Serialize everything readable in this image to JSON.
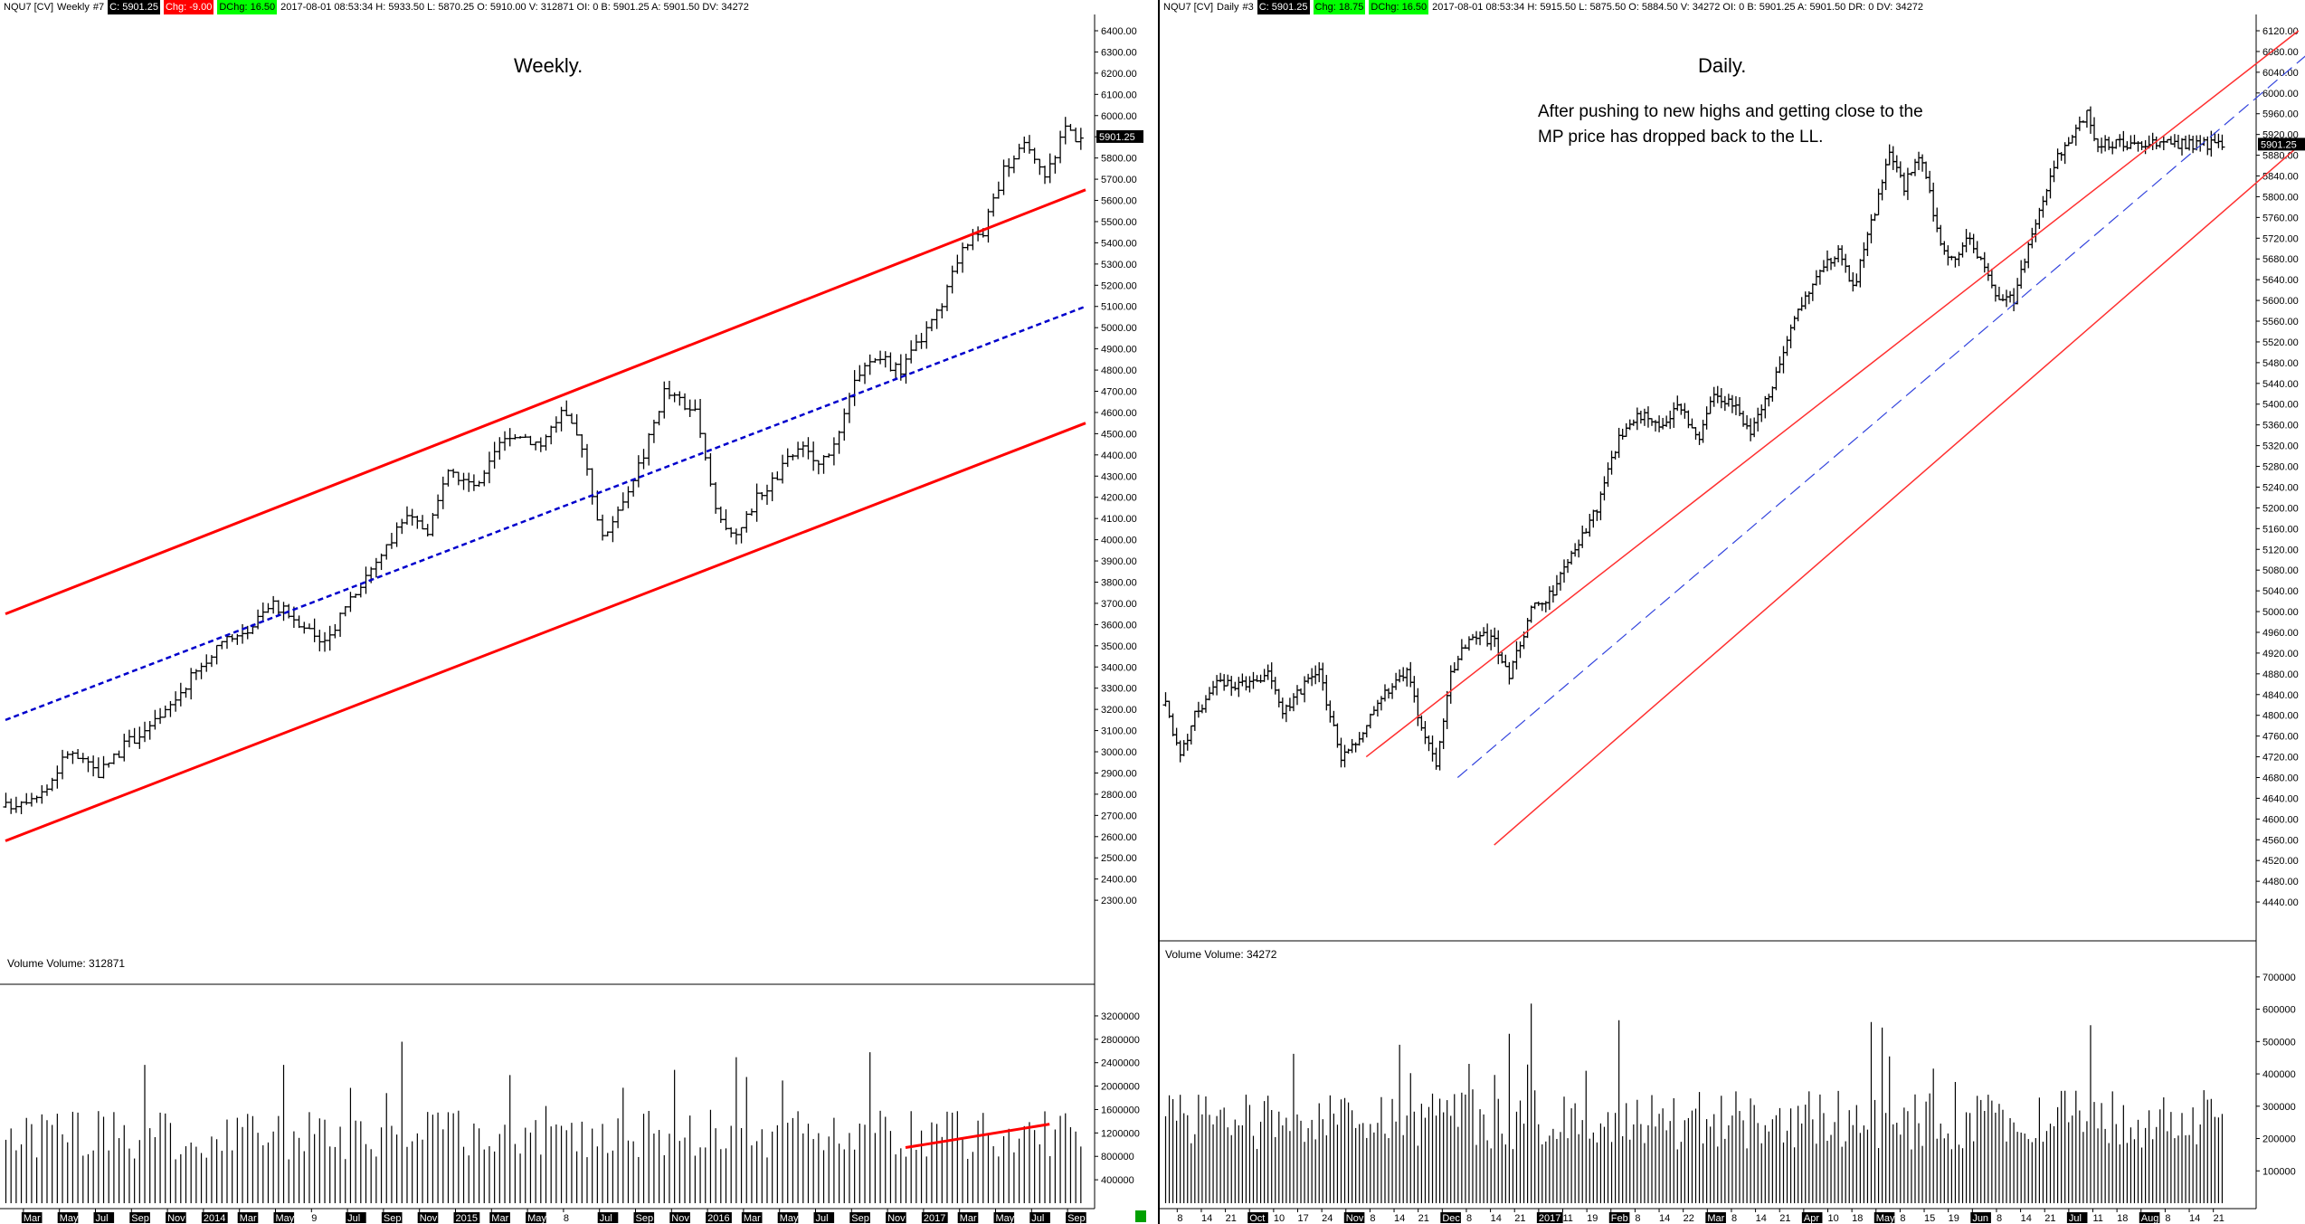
{
  "weekly": {
    "symbol": "NQU7 [CV]",
    "period": "Weekly",
    "tab": "#7",
    "close_badge": "C: 5901.25",
    "chg_badge": "Chg: -9.00",
    "dchg_badge": "DChg: 16.50",
    "info": "2017-08-01 08:53:34 H: 5933.50 L: 5870.25 O: 5910.00 V: 312871 OI: 0 B: 5901.25 A: 5901.50 DV: 34272",
    "title": "Weekly.",
    "last_price_label": "5901.25",
    "volume_label": "Volume  Volume: 312871",
    "x_ticks": [
      "Mar",
      "May",
      "Jul",
      "Sep",
      "Nov",
      "2014",
      "Mar",
      "May",
      "9",
      "Jul",
      "Sep",
      "Nov",
      "2015",
      "Mar",
      "May",
      "8",
      "Jul",
      "Sep",
      "Nov",
      "2016",
      "Mar",
      "May",
      "Jul",
      "Sep",
      "Nov",
      "2017",
      "Mar",
      "May",
      "Jul",
      "Sep"
    ]
  },
  "daily": {
    "symbol": "NQU7 [CV]",
    "period": "Daily",
    "tab": "#3",
    "close_badge": "C: 5901.25",
    "chg_badge": "Chg: 18.75",
    "dchg_badge": "DChg: 16.50",
    "info": "2017-08-01 08:53:34 H: 5915.50 L: 5875.50 O: 5884.50 V: 34272 OI: 0 B: 5901.25 A: 5901.50 DR: 0 DV: 34272",
    "title": "Daily.",
    "note": "After pushing to new highs and getting close to the MP price has dropped back to the LL.",
    "last_price_label": "5901.25",
    "volume_label": "Volume  Volume: 34272",
    "x_ticks": [
      "8",
      "14",
      "21",
      "Oct",
      "10",
      "17",
      "24",
      "Nov",
      "8",
      "14",
      "21",
      "Dec",
      "8",
      "14",
      "21",
      "2017",
      "11",
      "19",
      "Feb",
      "8",
      "14",
      "22",
      "Mar",
      "8",
      "14",
      "21",
      "Apr",
      "10",
      "18",
      "May",
      "8",
      "15",
      "19",
      "Jun",
      "8",
      "14",
      "21",
      "Jul",
      "11",
      "18",
      "Aug",
      "8",
      "14",
      "21"
    ]
  },
  "chart_data": [
    {
      "type": "ohlc",
      "name": "Weekly",
      "y_axis": {
        "min": 2100,
        "max": 6400,
        "step": 100
      },
      "y_ticks": [
        "6400.00",
        "6300.00",
        "6200.00",
        "6100.00",
        "6000.00",
        "5900.00",
        "5800.00",
        "5700.00",
        "5600.00",
        "5500.00",
        "5400.00",
        "5300.00",
        "5200.00",
        "5100.00",
        "5000.00",
        "4900.00",
        "4800.00",
        "4700.00",
        "4600.00",
        "4500.00",
        "4400.00",
        "4300.00",
        "4200.00",
        "4100.00",
        "4000.00",
        "3900.00",
        "3800.00",
        "3700.00",
        "3600.00",
        "3500.00",
        "3400.00",
        "3300.00",
        "3200.00",
        "3100.00",
        "3000.00",
        "2900.00",
        "2800.00",
        "2700.00",
        "2600.00",
        "2500.00",
        "2400.00",
        "2300.00"
      ],
      "anchors": [
        [
          0,
          2740
        ],
        [
          8,
          2830
        ],
        [
          12,
          3000
        ],
        [
          18,
          2900
        ],
        [
          24,
          3050
        ],
        [
          30,
          3150
        ],
        [
          36,
          3350
        ],
        [
          42,
          3500
        ],
        [
          48,
          3600
        ],
        [
          52,
          3700
        ],
        [
          58,
          3600
        ],
        [
          62,
          3500
        ],
        [
          66,
          3700
        ],
        [
          72,
          3900
        ],
        [
          78,
          4100
        ],
        [
          82,
          4050
        ],
        [
          86,
          4300
        ],
        [
          92,
          4250
        ],
        [
          96,
          4450
        ],
        [
          100,
          4500
        ],
        [
          104,
          4450
        ],
        [
          108,
          4600
        ],
        [
          112,
          4450
        ],
        [
          116,
          4000
        ],
        [
          120,
          4200
        ],
        [
          124,
          4400
        ],
        [
          128,
          4700
        ],
        [
          134,
          4600
        ],
        [
          138,
          4150
        ],
        [
          142,
          4000
        ],
        [
          146,
          4200
        ],
        [
          150,
          4300
        ],
        [
          154,
          4450
        ],
        [
          158,
          4350
        ],
        [
          162,
          4500
        ],
        [
          166,
          4800
        ],
        [
          170,
          4850
        ],
        [
          174,
          4800
        ],
        [
          178,
          4950
        ],
        [
          182,
          5100
        ],
        [
          186,
          5400
        ],
        [
          190,
          5450
        ],
        [
          194,
          5750
        ],
        [
          198,
          5850
        ],
        [
          202,
          5700
        ],
        [
          206,
          5950
        ],
        [
          208,
          5901
        ]
      ],
      "regression_channel": {
        "upper": [
          [
            0,
            3650
          ],
          [
            210,
            5650
          ]
        ],
        "mid": [
          [
            0,
            3150
          ],
          [
            210,
            5100
          ]
        ],
        "lower": [
          [
            0,
            2580
          ],
          [
            210,
            4550
          ]
        ]
      },
      "volume_axis": {
        "min": 0,
        "max": 3400000,
        "ticks": [
          "3200000",
          "2800000",
          "2400000",
          "2000000",
          "1600000",
          "1200000",
          "800000",
          "400000"
        ]
      },
      "volume_trend": [
        [
          175,
          950000
        ],
        [
          203,
          1350000
        ]
      ]
    },
    {
      "type": "ohlc",
      "name": "Daily",
      "y_axis": {
        "min": 4400,
        "max": 6120,
        "step": 40
      },
      "y_ticks": [
        "6120.00",
        "6080.00",
        "6040.00",
        "6000.00",
        "5960.00",
        "5920.00",
        "5880.00",
        "5840.00",
        "5800.00",
        "5760.00",
        "5720.00",
        "5680.00",
        "5640.00",
        "5600.00",
        "5560.00",
        "5520.00",
        "5480.00",
        "5440.00",
        "5400.00",
        "5360.00",
        "5320.00",
        "5280.00",
        "5240.00",
        "5200.00",
        "5160.00",
        "5120.00",
        "5080.00",
        "5040.00",
        "5000.00",
        "4960.00",
        "4920.00",
        "4880.00",
        "4840.00",
        "4800.00",
        "4760.00",
        "4720.00",
        "4680.00",
        "4640.00",
        "4600.00",
        "4560.00",
        "4520.00",
        "4480.00",
        "4440.00"
      ],
      "anchors": [
        [
          0,
          4820
        ],
        [
          4,
          4720
        ],
        [
          8,
          4800
        ],
        [
          14,
          4860
        ],
        [
          20,
          4860
        ],
        [
          28,
          4880
        ],
        [
          32,
          4800
        ],
        [
          38,
          4860
        ],
        [
          42,
          4880
        ],
        [
          48,
          4720
        ],
        [
          54,
          4770
        ],
        [
          60,
          4840
        ],
        [
          66,
          4880
        ],
        [
          70,
          4780
        ],
        [
          74,
          4700
        ],
        [
          78,
          4880
        ],
        [
          84,
          4960
        ],
        [
          90,
          4940
        ],
        [
          94,
          4880
        ],
        [
          100,
          5000
        ],
        [
          106,
          5040
        ],
        [
          112,
          5120
        ],
        [
          118,
          5200
        ],
        [
          124,
          5340
        ],
        [
          130,
          5380
        ],
        [
          136,
          5360
        ],
        [
          140,
          5400
        ],
        [
          146,
          5340
        ],
        [
          150,
          5420
        ],
        [
          156,
          5400
        ],
        [
          160,
          5340
        ],
        [
          166,
          5440
        ],
        [
          172,
          5560
        ],
        [
          178,
          5640
        ],
        [
          184,
          5700
        ],
        [
          188,
          5620
        ],
        [
          192,
          5720
        ],
        [
          198,
          5880
        ],
        [
          202,
          5820
        ],
        [
          206,
          5880
        ],
        [
          208,
          5840
        ],
        [
          212,
          5700
        ],
        [
          216,
          5680
        ],
        [
          220,
          5720
        ],
        [
          224,
          5660
        ],
        [
          228,
          5600
        ],
        [
          232,
          5600
        ],
        [
          236,
          5700
        ],
        [
          240,
          5800
        ],
        [
          244,
          5880
        ],
        [
          248,
          5920
        ],
        [
          252,
          5960
        ],
        [
          255,
          5901
        ]
      ],
      "regression_channel": {
        "upper": [
          [
            55,
            4720
          ],
          [
            310,
            6120
          ]
        ],
        "mid": [
          [
            80,
            4680
          ],
          [
            320,
            6120
          ]
        ],
        "lower": [
          [
            90,
            4550
          ],
          [
            330,
            6020
          ]
        ]
      },
      "volume_axis": {
        "min": 0,
        "max": 750000,
        "ticks": [
          "700000",
          "600000",
          "500000",
          "400000",
          "300000",
          "200000",
          "100000"
        ]
      }
    }
  ]
}
